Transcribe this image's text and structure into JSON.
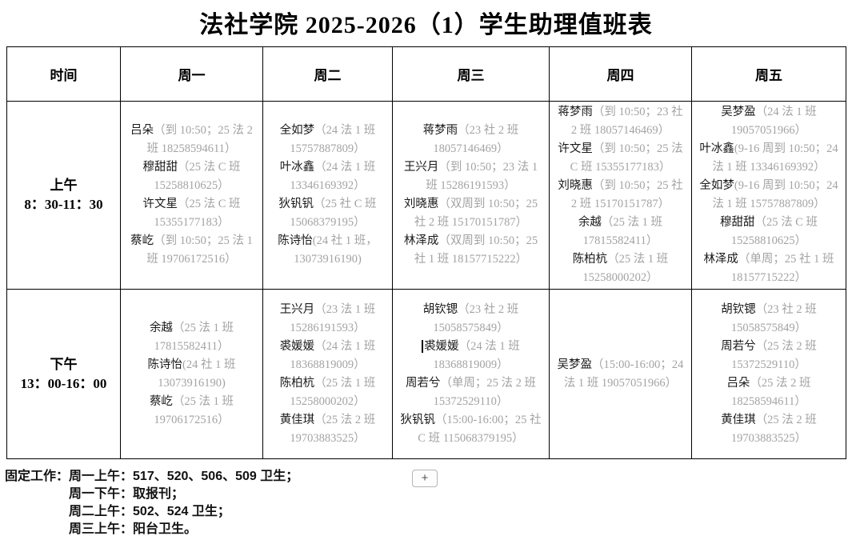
{
  "title": "法社学院 2025-2026（1）学生助理值班表",
  "colors": {
    "name_text": "#1a1a1a",
    "detail_text": "#a3a3a3",
    "table_border": "#000000",
    "plus_button_border": "#b5b5b5"
  },
  "table": {
    "headers": [
      "时间",
      "周一",
      "周二",
      "周三",
      "周四",
      "周五"
    ],
    "rows": [
      {
        "time_label": "上午",
        "time_range": "8：30-11：30",
        "cells": [
          [
            {
              "name": "吕朵",
              "detail": "（到 10:50；25 法 2 班 18258594611）"
            },
            {
              "name": "穆甜甜",
              "detail": "（25 法 C 班 15258810625）"
            },
            {
              "name": "许文星",
              "detail": "（25 法 C 班 15355177183）"
            },
            {
              "name": "蔡屹",
              "detail": "（到 10:50；25 法 1 班 19706172516）"
            }
          ],
          [
            {
              "name": "全如梦",
              "detail": "（24 法 1 班 15757887809）"
            },
            {
              "name": "叶冰鑫",
              "detail": "（24 法 1 班 13346169392）"
            },
            {
              "name": "狄钒钒",
              "detail": "（25 社 C 班 15068379195）"
            },
            {
              "name": "陈诗怡",
              "detail": "(24 社 1 班，13073916190)"
            }
          ],
          [
            {
              "name": "蒋梦雨",
              "detail": "（23 社 2 班 18057146469）"
            },
            {
              "name": "王兴月",
              "detail": "（到 10:50；23 法 1 班 15286191593）"
            },
            {
              "name": "刘晓惠",
              "detail": "（双周到 10:50；25 社 2 班 15170151787）"
            },
            {
              "name": "林泽成",
              "detail": "（双周到 10:50；25 社 1 班 18157715222）"
            }
          ],
          [
            {
              "name": "蒋梦雨",
              "detail": "（到 10:50；23 社 2 班 18057146469）"
            },
            {
              "name": "许文星",
              "detail": "（到 10:50；25 法 C 班 15355177183）"
            },
            {
              "name": "刘晓惠",
              "detail": "（到 10:50；25 社 2 班 15170151787）"
            },
            {
              "name": "余越",
              "detail": "（25 法 1 班 17815582411）"
            },
            {
              "name": "陈柏杭",
              "detail": "（25 法 1 班 15258000202）"
            }
          ],
          [
            {
              "name": "吴梦盈",
              "detail": "（24 法 1 班 19057051966）"
            },
            {
              "name": "叶冰鑫",
              "detail": "(9-16 周到 10:50；24 法 1 班 13346169392）"
            },
            {
              "name": "全如梦",
              "detail": "(9-16 周到 10:50；24 法 1 班 15757887809）"
            },
            {
              "name": "穆甜甜",
              "detail": "（25 法 C 班 15258810625）"
            },
            {
              "name": "林泽成",
              "detail": "（单周；25 社 1 班 18157715222）"
            }
          ]
        ]
      },
      {
        "time_label": "下午",
        "time_range": "13：00-16：00",
        "cells": [
          [
            {
              "name": "余越",
              "detail": "（25 法 1 班 17815582411）"
            },
            {
              "name": "陈诗怡",
              "detail": "(24 社 1 班 13073916190)"
            },
            {
              "name": "蔡屹",
              "detail": "（25 法 1 班 19706172516）"
            }
          ],
          [
            {
              "name": "王兴月",
              "detail": "（23 法 1 班 15286191593）"
            },
            {
              "name": "裘媛媛",
              "detail": "（24 法 1 班 18368819009）"
            },
            {
              "name": "陈柏杭",
              "detail": "（25 法 1 班 15258000202）"
            },
            {
              "name": "黄佳琪",
              "detail": "（25 法 2 班 19703883525）"
            }
          ],
          [
            {
              "name": "胡钦锶",
              "detail": "（23 社 2 班 15058575849）"
            },
            {
              "name": "裘媛媛",
              "detail": "（24 法 1 班 18368819009）",
              "caret": true
            },
            {
              "name": "周若兮",
              "detail": "（单周；25 法 2 班 15372529110）"
            },
            {
              "name": "狄钒钒",
              "detail": "（15:00-16:00；25 社 C 班 115068379195）"
            }
          ],
          [
            {
              "name": "吴梦盈",
              "detail": "（15:00-16:00；24 法 1 班 19057051966）"
            }
          ],
          [
            {
              "name": "胡钦锶",
              "detail": "（23 社 2 班 15058575849）"
            },
            {
              "name": "周若兮",
              "detail": "（25 法 2 班 15372529110）"
            },
            {
              "name": "吕朵",
              "detail": "（25 法 2 班 18258594611）"
            },
            {
              "name": "黄佳琪",
              "detail": "（25 法 2 班 19703883525）"
            }
          ]
        ]
      }
    ]
  },
  "notes": {
    "label": "固定工作：",
    "lines": [
      "周一上午：517、520、506、509 卫生；",
      "周一下午：取报刊；",
      "周二上午：502、524 卫生；",
      "周三上午：阳台卫生。"
    ]
  },
  "plus_button_label": "+"
}
